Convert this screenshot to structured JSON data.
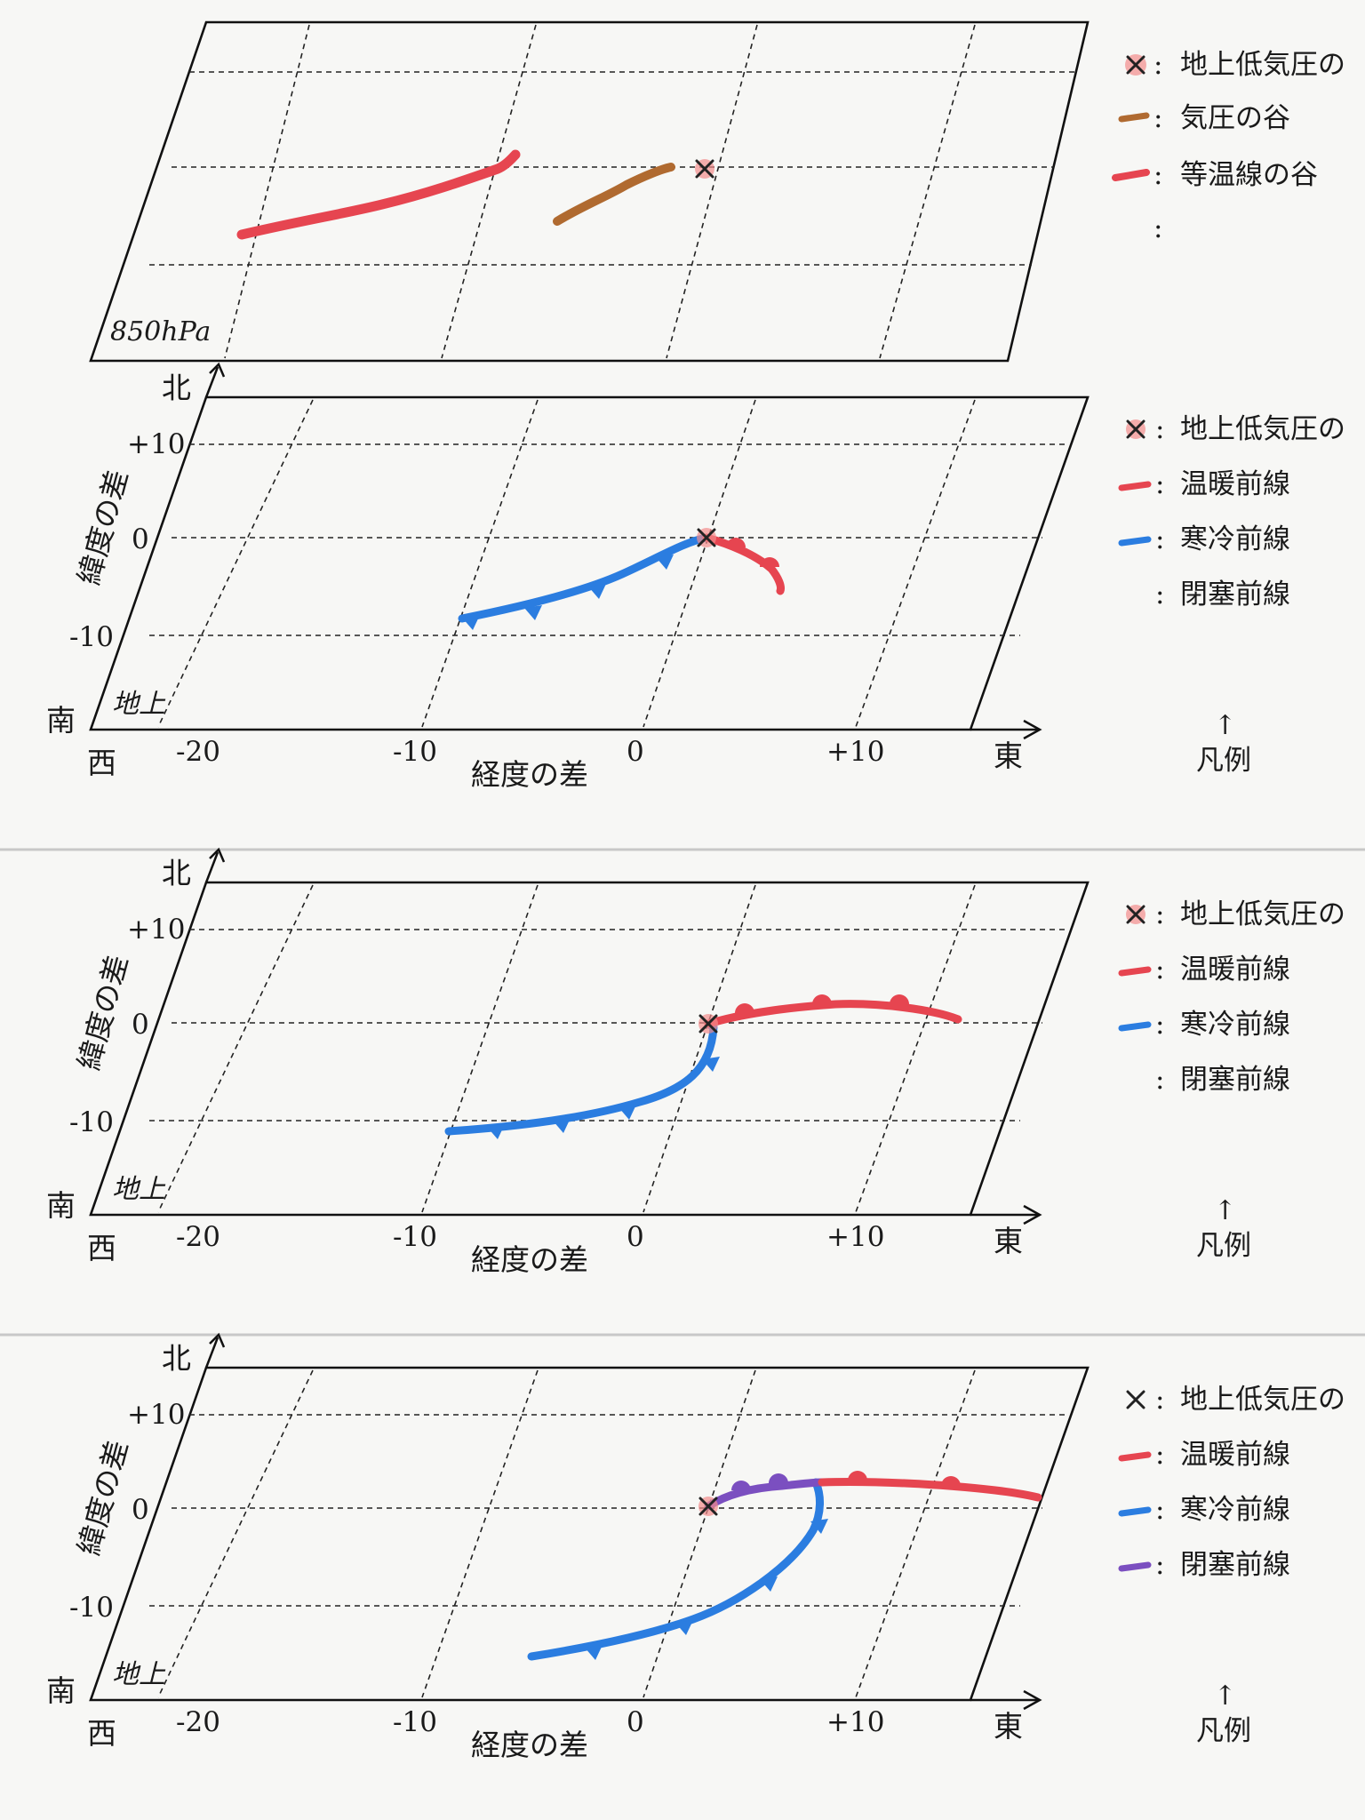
{
  "labels": {
    "north": "北",
    "south": "南",
    "west": "西",
    "east": "東",
    "lat_axis": "緯度の差",
    "lon_axis": "経度の差",
    "lat_ticks": [
      "+10",
      "0",
      "-10"
    ],
    "lon_ticks": [
      "-20",
      "-10",
      "0",
      "+10"
    ],
    "legend_caption_arrow": "↑",
    "legend_caption": "凡例"
  },
  "panels": [
    {
      "id": "p850",
      "level_label": "850hPa",
      "legend": [
        {
          "symbol": "x",
          "color": "#e05050",
          "text": "地上低気圧の"
        },
        {
          "symbol": "line",
          "color": "#b06a30",
          "text": "気圧の谷"
        },
        {
          "symbol": "line",
          "color": "#e64550",
          "text": "等温線の谷"
        },
        {
          "symbol": "none",
          "color": "",
          "text": ""
        }
      ]
    },
    {
      "id": "s1",
      "level_label": "地上",
      "legend": [
        {
          "symbol": "x",
          "color": "#e05050",
          "text": "地上低気圧の"
        },
        {
          "symbol": "line",
          "color": "#e64550",
          "text": "温暖前線"
        },
        {
          "symbol": "line",
          "color": "#2b7de0",
          "text": "寒冷前線"
        },
        {
          "symbol": "none",
          "color": "",
          "text": "閉塞前線"
        }
      ]
    },
    {
      "id": "s2",
      "level_label": "地上",
      "legend": [
        {
          "symbol": "x",
          "color": "#e05050",
          "text": "地上低気圧の"
        },
        {
          "symbol": "line",
          "color": "#e64550",
          "text": "温暖前線"
        },
        {
          "symbol": "line",
          "color": "#2b7de0",
          "text": "寒冷前線"
        },
        {
          "symbol": "none",
          "color": "",
          "text": "閉塞前線"
        }
      ]
    },
    {
      "id": "s3",
      "level_label": "地上",
      "legend": [
        {
          "symbol": "x",
          "color": "#222222",
          "text": "地上低気圧の"
        },
        {
          "symbol": "line",
          "color": "#e64550",
          "text": "温暖前線"
        },
        {
          "symbol": "line",
          "color": "#2b7de0",
          "text": "寒冷前線"
        },
        {
          "symbol": "line",
          "color": "#7b4fc0",
          "text": "閉塞前線"
        }
      ]
    }
  ],
  "colors": {
    "warm": "#e64550",
    "cold": "#2b7de0",
    "occluded": "#7b4fc0",
    "trough": "#b06a30",
    "low_mark": "#e05050"
  }
}
